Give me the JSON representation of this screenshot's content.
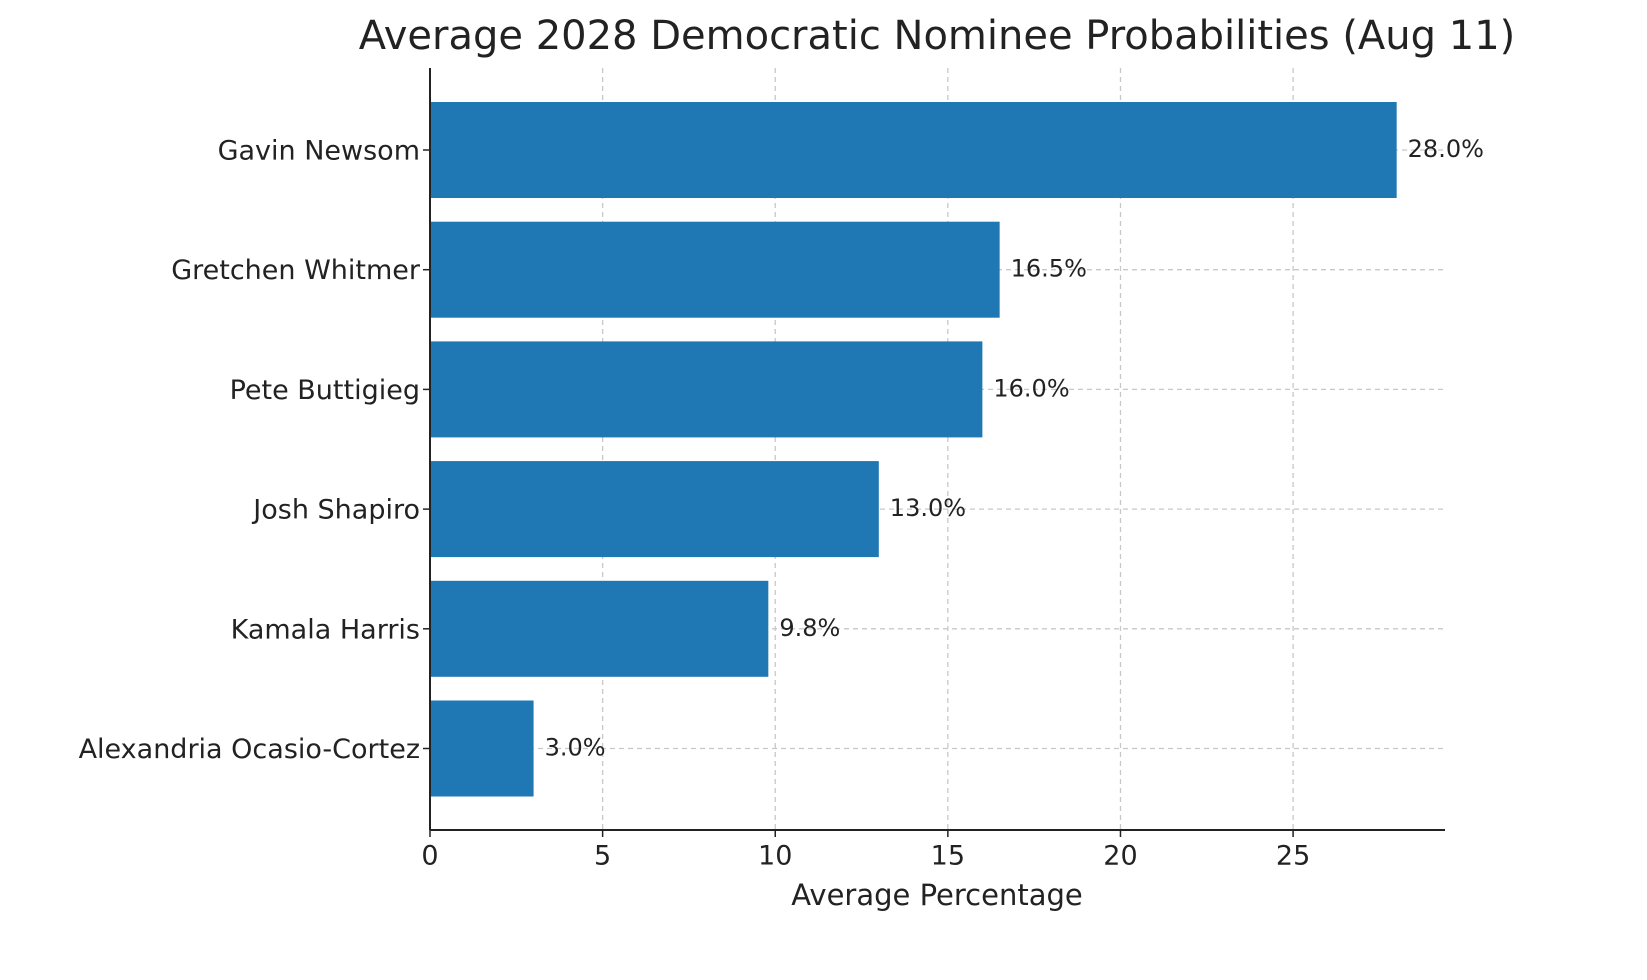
{
  "chart_data": {
    "type": "bar",
    "orientation": "horizontal",
    "title": "Average 2028 Democratic Nominee Probabilities (Aug 11)",
    "xlabel": "Average Percentage",
    "categories": [
      "Gavin Newsom",
      "Gretchen Whitmer",
      "Pete Buttigieg",
      "Josh Shapiro",
      "Kamala Harris",
      "Alexandria Ocasio-Cortez"
    ],
    "values": [
      28.0,
      16.5,
      16.0,
      13.0,
      9.8,
      3.0
    ],
    "value_labels": [
      "28.0%",
      "16.5%",
      "16.0%",
      "13.0%",
      "9.8%",
      "3.0%"
    ],
    "color": "#1f77b4",
    "xlim": [
      0,
      29.4
    ],
    "xticks": [
      0,
      5,
      10,
      15,
      20,
      25
    ],
    "grid": true
  }
}
